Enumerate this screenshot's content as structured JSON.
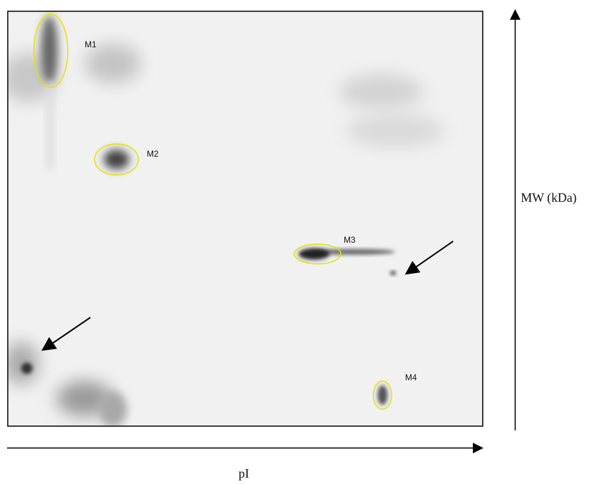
{
  "spot_labels": [
    "M1",
    "M2",
    "M3",
    "M4"
  ],
  "y_axis_label": "MW (kDa)",
  "x_axis_label": "pI"
}
